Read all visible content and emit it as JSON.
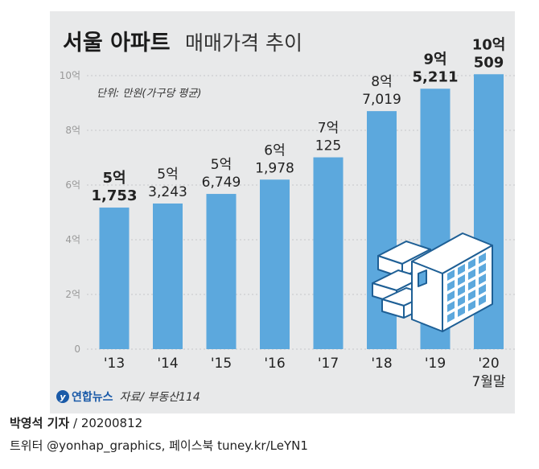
{
  "header": {
    "title_bold": "서울 아파트",
    "title_light": "매매가격 추이",
    "unit_note": "단위: 만원(가구당 평균)"
  },
  "chart_data": {
    "type": "bar",
    "title": "서울 아파트 매매가격 추이",
    "unit": "단위: 만원(가구당 평균)",
    "categories": [
      "'13",
      "'14",
      "'15",
      "'16",
      "'17",
      "'18",
      "'19",
      "'20"
    ],
    "category_sublabels": [
      "",
      "",
      "",
      "",
      "",
      "",
      "",
      "7월말"
    ],
    "values": [
      51753,
      53243,
      56749,
      61978,
      70125,
      87019,
      95211,
      100509
    ],
    "value_labels_top": [
      "5억",
      "5억",
      "5억",
      "6억",
      "7억",
      "8억",
      "9억",
      "10억"
    ],
    "value_labels_bottom": [
      "1,753",
      "3,243",
      "6,749",
      "1,978",
      "125",
      "7,019",
      "5,211",
      "509"
    ],
    "bold_labels": [
      true,
      false,
      false,
      false,
      false,
      false,
      true,
      true
    ],
    "yticks": [
      "0",
      "2억",
      "4억",
      "6억",
      "8억",
      "10억"
    ],
    "ylim": [
      0,
      100000
    ],
    "grid": true,
    "bar_color": "#5ca8dd"
  },
  "footer": {
    "logo_text": "연합뉴스",
    "source": "자료/ 부동산114",
    "author": "박영석 기자",
    "date": "/ 20200812",
    "social": "트위터 @yonhap_graphics, 페이스북 tuney.kr/LeYN1"
  }
}
